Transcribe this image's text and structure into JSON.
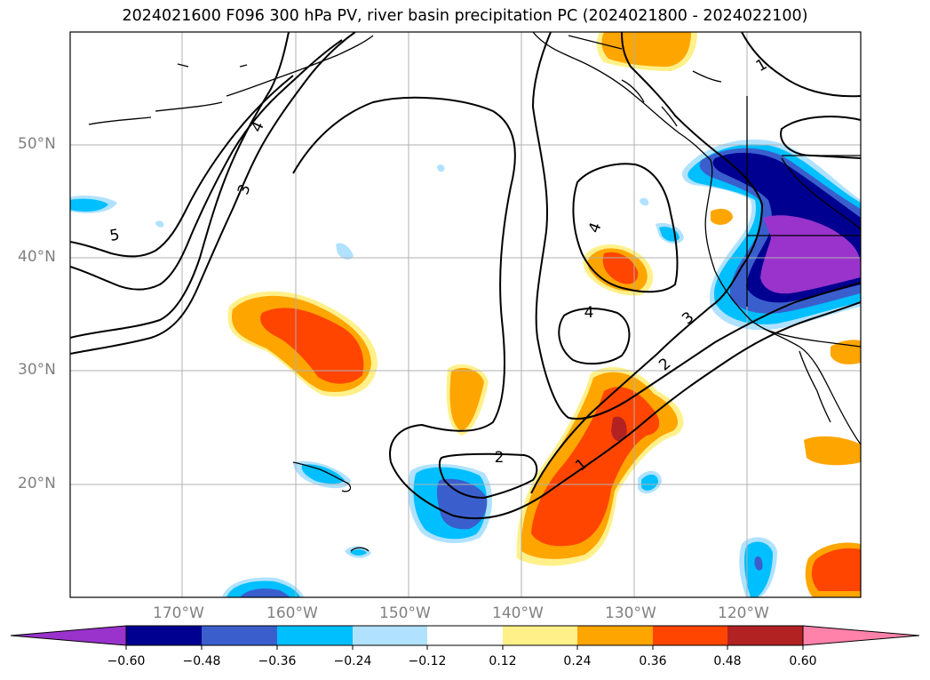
{
  "title": "2024021600 F096 300 hPa PV, river basin precipitation PC (2024021800 - 2024022100)",
  "latitude_labels": [
    "50°N",
    "40°N",
    "30°N",
    "20°N"
  ],
  "longitude_labels": [
    "170°W",
    "160°W",
    "150°W",
    "140°W",
    "130°W",
    "120°W"
  ],
  "pv_contour_labels": [
    "1",
    "2",
    "3",
    "4",
    "5",
    "1",
    "2",
    "3",
    "4",
    "4",
    "2"
  ],
  "colorbar": {
    "ticks": [
      "−0.60",
      "−0.48",
      "−0.36",
      "−0.24",
      "−0.12",
      "0.12",
      "0.24",
      "0.36",
      "0.48",
      "0.60"
    ],
    "colors": [
      "#9933cc",
      "#000090",
      "#3a5fcd",
      "#00bfff",
      "#b0e2ff",
      "#ffffff",
      "#fff08a",
      "#ffa500",
      "#ff4500",
      "#b22222",
      "#ff82ab"
    ],
    "extend": "both"
  },
  "colors": {
    "contour": "#000000",
    "grid": "#b0b0b0",
    "axis_labels": "#808080"
  }
}
